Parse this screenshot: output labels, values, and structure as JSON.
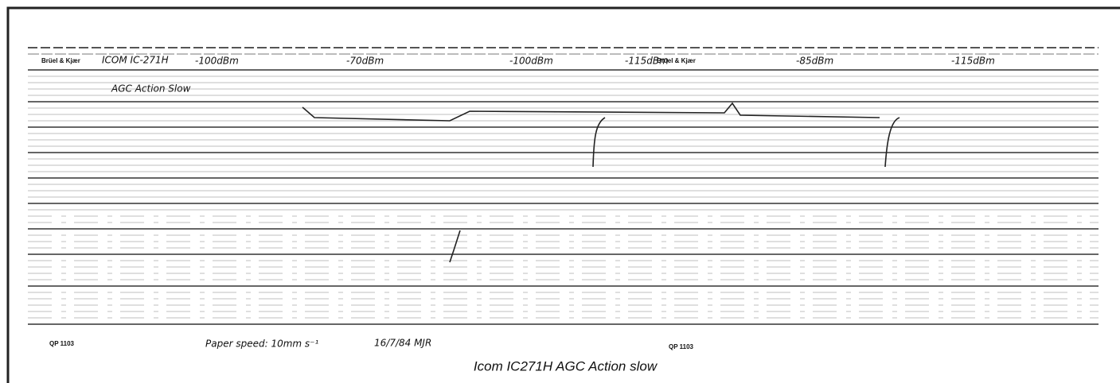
{
  "header": {
    "brand_left": "Brüel & Kjær",
    "title": "ICOM IC-271H",
    "subtitle": "AGC Action Slow",
    "brand_right": "Brüel & Kjær"
  },
  "levels": [
    "-100dBm",
    "-70dBm",
    "-100dBm",
    "-115dBm",
    "-85dBm",
    "-115dBm"
  ],
  "footer": {
    "code_left": "QP 1103",
    "paper_speed": "Paper speed:  10mm s⁻¹",
    "date": "16/7/84  MJR",
    "code_right": "QP 1103"
  },
  "caption": "Icom IC271H AGC Action slow"
}
